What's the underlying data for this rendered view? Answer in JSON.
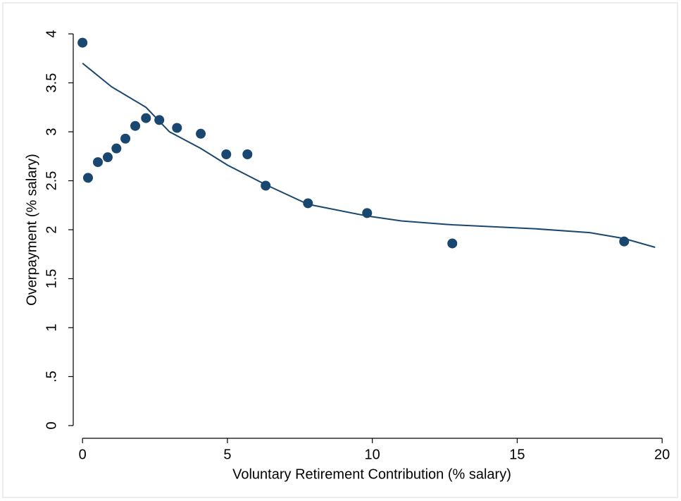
{
  "chart_data": {
    "type": "scatter",
    "x_label": "Voluntary Retirement Contribution (% salary)",
    "y_label": "Overpayment (% salary)",
    "xlim": [
      -0.32,
      20.36
    ],
    "ylim": [
      -0.13,
      4.13
    ],
    "xticks": [
      0,
      5,
      10,
      15,
      20
    ],
    "yticks": [
      0,
      {
        "value": 0.5,
        "label": ".5"
      },
      1,
      1.5,
      2,
      2.5,
      3,
      3.5,
      4
    ],
    "series": [
      {
        "type": "scatter",
        "color": "#1a476f",
        "x": [
          0,
          0.19,
          0.53,
          0.87,
          1.17,
          1.48,
          1.82,
          2.19,
          2.65,
          3.26,
          4.08,
          4.96,
          5.69,
          6.32,
          7.78,
          9.82,
          12.76,
          18.69
        ],
        "values": [
          3.91,
          2.53,
          2.69,
          2.74,
          2.83,
          2.93,
          3.06,
          3.14,
          3.12,
          3.04,
          2.98,
          2.77,
          2.77,
          2.45,
          2.27,
          2.17,
          1.86,
          1.88
        ]
      },
      {
        "type": "line",
        "color": "#1a476f",
        "x": [
          0,
          1,
          2.19,
          3,
          4.08,
          5,
          6.32,
          7.78,
          9.82,
          11,
          12.76,
          15.6,
          17.5,
          18.69,
          19.76
        ],
        "values": [
          3.7,
          3.46,
          3.25,
          3.0,
          2.83,
          2.66,
          2.46,
          2.26,
          2.14,
          2.09,
          2.05,
          2.01,
          1.97,
          1.91,
          1.82
        ]
      }
    ]
  }
}
